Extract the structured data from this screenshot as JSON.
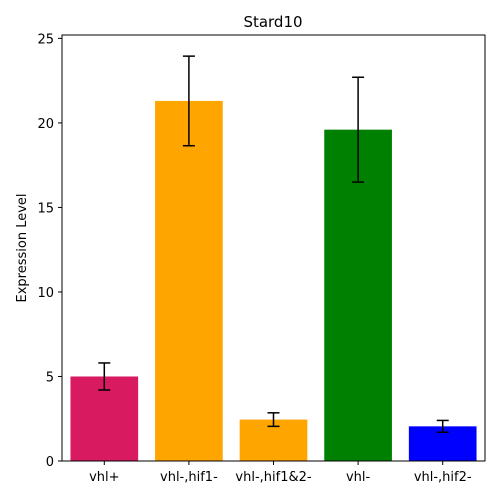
{
  "chart_data": {
    "type": "bar",
    "title": "Stard10",
    "xlabel": "",
    "ylabel": "Expression Level",
    "categories": [
      "vhl+",
      "vhl-,hif1-",
      "vhl-,hif1&2-",
      "vhl-",
      "vhl-,hif2-"
    ],
    "values": [
      5.0,
      21.3,
      2.45,
      19.6,
      2.05
    ],
    "errors": [
      0.8,
      2.65,
      0.4,
      3.1,
      0.35
    ],
    "colors": [
      "#d81b60",
      "#ffa500",
      "#ffa500",
      "#008000",
      "#0000ff"
    ],
    "ylim": [
      0,
      25.2
    ],
    "yticks": [
      0,
      5,
      10,
      15,
      20,
      25
    ],
    "grid": false,
    "legend": "none"
  }
}
